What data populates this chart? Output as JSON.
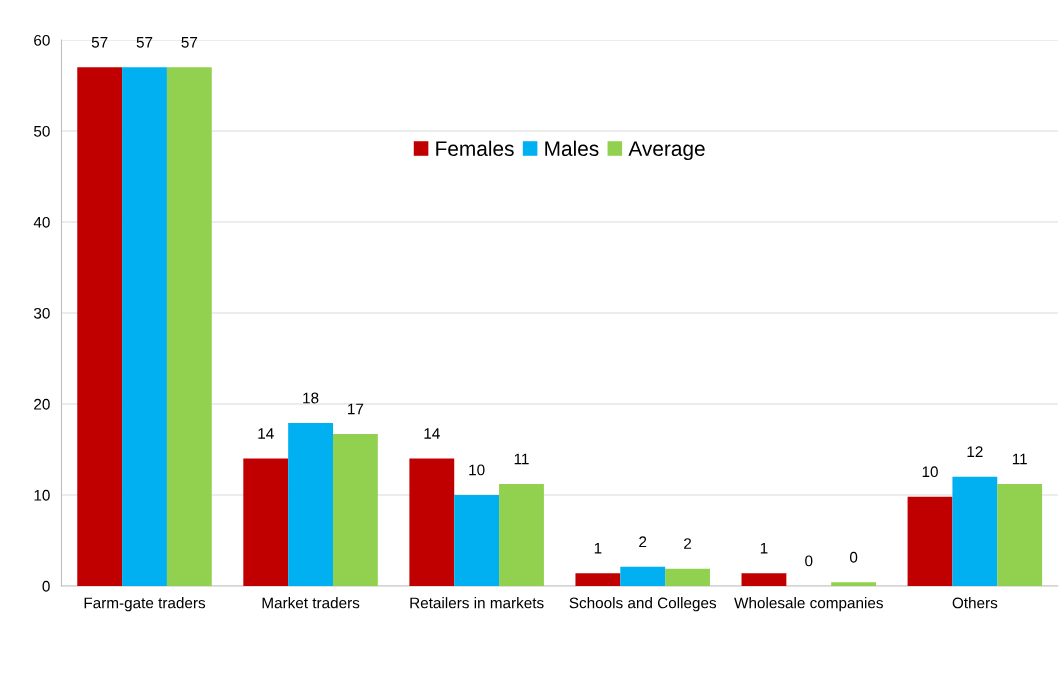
{
  "chart_data": {
    "type": "bar",
    "categories": [
      "Farm-gate traders",
      "Market traders",
      "Retailers in markets",
      "Schools and Colleges",
      "Wholesale companies",
      "Others"
    ],
    "series": [
      {
        "name": "Females",
        "color": "#c00000",
        "values": [
          57,
          14,
          14,
          1.4,
          1.4,
          9.8
        ],
        "value_labels": [
          "57",
          "14",
          "14",
          "1",
          "1",
          "10"
        ]
      },
      {
        "name": "Males",
        "color": "#00b0f0",
        "values": [
          57,
          17.9,
          10,
          2.1,
          0,
          12
        ],
        "value_labels": [
          "57",
          "18",
          "10",
          "2",
          "0",
          "12"
        ]
      },
      {
        "name": "Average",
        "color": "#92d050",
        "values": [
          57,
          16.7,
          11.2,
          1.9,
          0.4,
          11.2
        ],
        "value_labels": [
          "57",
          "17",
          "11",
          "2",
          "0",
          "11"
        ]
      }
    ],
    "ylim": [
      0,
      60
    ],
    "yticks": [
      0,
      10,
      20,
      30,
      40,
      50,
      60
    ],
    "grid": "y",
    "legend": "top"
  }
}
